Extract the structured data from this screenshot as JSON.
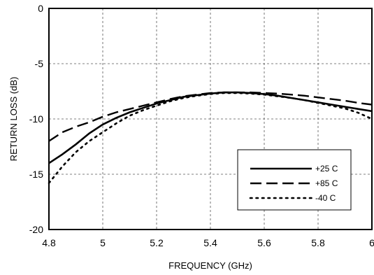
{
  "chart_data": {
    "type": "line",
    "xlabel": "FREQUENCY (GHz)",
    "ylabel": "RETURN LOSS (dB)",
    "xlim": [
      4.8,
      6.0
    ],
    "ylim": [
      -20,
      0
    ],
    "xticks": [
      4.8,
      5.0,
      5.2,
      5.4,
      5.6,
      5.8,
      6.0
    ],
    "xtick_labels": [
      "4.8",
      "5",
      "5.2",
      "5.4",
      "5.6",
      "5.8",
      "6"
    ],
    "yticks": [
      0,
      -5,
      -10,
      -15,
      -20
    ],
    "ytick_labels": [
      "0",
      "-5",
      "-10",
      "-15",
      "-20"
    ],
    "grid": true,
    "legend_position": "bottom-right",
    "series": [
      {
        "name": "+25 C",
        "style": "solid",
        "x": [
          4.8,
          4.85,
          4.9,
          4.95,
          5.0,
          5.05,
          5.1,
          5.15,
          5.2,
          5.25,
          5.3,
          5.35,
          5.4,
          5.45,
          5.5,
          5.55,
          5.6,
          5.65,
          5.7,
          5.75,
          5.8,
          5.85,
          5.9,
          5.95,
          6.0
        ],
        "y": [
          -14.0,
          -13.2,
          -12.3,
          -11.3,
          -10.5,
          -9.9,
          -9.4,
          -9.0,
          -8.6,
          -8.3,
          -8.0,
          -7.85,
          -7.7,
          -7.6,
          -7.6,
          -7.65,
          -7.75,
          -7.9,
          -8.1,
          -8.3,
          -8.5,
          -8.7,
          -8.9,
          -9.1,
          -9.3
        ]
      },
      {
        "name": "+85 C",
        "style": "long-dash",
        "x": [
          4.8,
          4.85,
          4.9,
          4.95,
          5.0,
          5.05,
          5.1,
          5.15,
          5.2,
          5.25,
          5.3,
          5.35,
          5.4,
          5.45,
          5.5,
          5.55,
          5.6,
          5.65,
          5.7,
          5.75,
          5.8,
          5.85,
          5.9,
          5.95,
          6.0
        ],
        "y": [
          -12.0,
          -11.2,
          -10.7,
          -10.3,
          -9.8,
          -9.4,
          -9.1,
          -8.8,
          -8.5,
          -8.2,
          -7.95,
          -7.8,
          -7.65,
          -7.6,
          -7.6,
          -7.6,
          -7.65,
          -7.7,
          -7.8,
          -7.9,
          -8.05,
          -8.2,
          -8.35,
          -8.55,
          -8.7
        ]
      },
      {
        "name": "-40 C",
        "style": "dotted",
        "x": [
          4.8,
          4.85,
          4.9,
          4.95,
          5.0,
          5.05,
          5.1,
          5.15,
          5.2,
          5.25,
          5.3,
          5.35,
          5.4,
          5.45,
          5.5,
          5.55,
          5.6,
          5.65,
          5.7,
          5.75,
          5.8,
          5.85,
          5.9,
          5.95,
          6.0
        ],
        "y": [
          -15.8,
          -14.3,
          -13.0,
          -12.0,
          -11.2,
          -10.4,
          -9.7,
          -9.2,
          -8.8,
          -8.4,
          -8.1,
          -7.9,
          -7.75,
          -7.65,
          -7.65,
          -7.7,
          -7.8,
          -7.95,
          -8.1,
          -8.3,
          -8.55,
          -8.8,
          -9.05,
          -9.45,
          -10.0
        ]
      }
    ]
  }
}
